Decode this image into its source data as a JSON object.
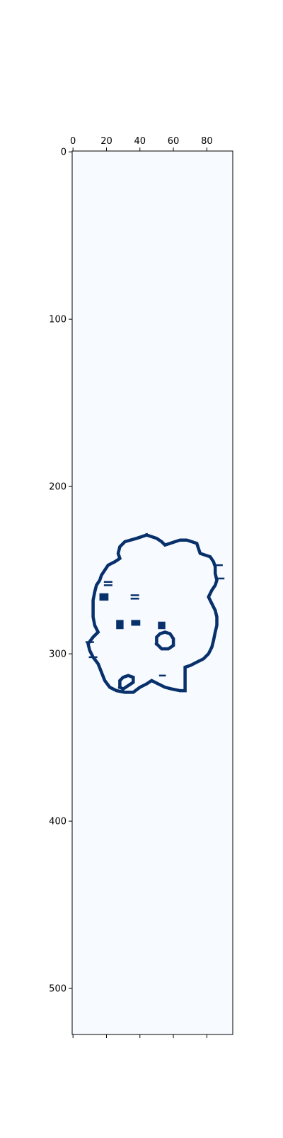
{
  "chart_data": {
    "type": "heatmap",
    "title": "",
    "xlabel": "",
    "ylabel": "",
    "xlim": [
      -0.5,
      95.5
    ],
    "ylim": [
      527.5,
      -0.5
    ],
    "x_ticks": [
      0,
      20,
      40,
      60,
      80
    ],
    "y_ticks": [
      0,
      100,
      200,
      300,
      400,
      500
    ],
    "x_tick_labels": [
      "0",
      "20",
      "40",
      "60",
      "80"
    ],
    "y_tick_labels": [
      "0",
      "100",
      "200",
      "300",
      "400",
      "500"
    ],
    "x_ticks_position": "top",
    "bottom_ticks_labeled": false,
    "grid": false,
    "colormap": "Blues",
    "background_color": "#f7fbff",
    "line_color": "#08306b",
    "outline": [
      [
        44,
        229
      ],
      [
        38,
        231
      ],
      [
        31,
        233
      ],
      [
        28,
        236
      ],
      [
        27,
        240
      ],
      [
        28,
        243
      ],
      [
        25,
        245
      ],
      [
        21,
        247
      ],
      [
        19,
        250
      ],
      [
        17,
        253
      ],
      [
        16,
        256
      ],
      [
        14,
        259
      ],
      [
        13,
        263
      ],
      [
        12,
        268
      ],
      [
        12,
        273
      ],
      [
        12,
        278
      ],
      [
        13,
        283
      ],
      [
        15,
        287
      ],
      [
        12,
        290
      ],
      [
        9,
        294
      ],
      [
        10,
        298
      ],
      [
        12,
        302
      ],
      [
        15,
        306
      ],
      [
        17,
        311
      ],
      [
        19,
        316
      ],
      [
        22,
        320
      ],
      [
        26,
        322
      ],
      [
        31,
        323
      ],
      [
        36,
        323
      ],
      [
        40,
        320
      ],
      [
        44,
        318
      ],
      [
        47,
        316
      ],
      [
        51,
        318
      ],
      [
        55,
        320
      ],
      [
        59,
        321
      ],
      [
        64,
        322
      ],
      [
        67,
        322
      ],
      [
        67,
        317
      ],
      [
        67,
        312
      ],
      [
        67,
        308
      ],
      [
        70,
        307
      ],
      [
        74,
        305
      ],
      [
        78,
        303
      ],
      [
        81,
        300
      ],
      [
        83,
        296
      ],
      [
        84,
        292
      ],
      [
        85,
        287
      ],
      [
        86,
        283
      ],
      [
        86,
        278
      ],
      [
        85,
        274
      ],
      [
        83,
        270
      ],
      [
        81,
        266
      ],
      [
        83,
        262
      ],
      [
        85,
        259
      ],
      [
        86,
        256
      ],
      [
        85,
        252
      ],
      [
        85,
        248
      ],
      [
        84,
        245
      ],
      [
        82,
        242
      ],
      [
        79,
        241
      ],
      [
        76,
        240
      ],
      [
        75,
        237
      ],
      [
        74,
        234
      ],
      [
        71,
        233
      ],
      [
        68,
        232
      ],
      [
        64,
        232
      ],
      [
        61,
        233
      ],
      [
        58,
        234
      ],
      [
        55,
        235
      ],
      [
        53,
        233
      ],
      [
        50,
        231
      ],
      [
        47,
        230
      ],
      [
        44,
        229
      ]
    ],
    "interior_marks": [
      {
        "shape": "loop",
        "points": [
          [
            50,
            294
          ],
          [
            50,
            290
          ],
          [
            52,
            288
          ],
          [
            55,
            287
          ],
          [
            58,
            288
          ],
          [
            60,
            291
          ],
          [
            60,
            295
          ],
          [
            57,
            297
          ],
          [
            53,
            297
          ],
          [
            50,
            294
          ]
        ]
      },
      {
        "shape": "loop",
        "points": [
          [
            28,
            320
          ],
          [
            28,
            316
          ],
          [
            30,
            314
          ],
          [
            33,
            313
          ],
          [
            36,
            314
          ],
          [
            36,
            317
          ],
          [
            33,
            319
          ],
          [
            30,
            321
          ],
          [
            28,
            320
          ]
        ]
      },
      {
        "shape": "block",
        "points": [
          [
            26,
            280
          ],
          [
            30,
            280
          ],
          [
            30,
            285
          ],
          [
            26,
            285
          ]
        ]
      },
      {
        "shape": "block",
        "points": [
          [
            35,
            280
          ],
          [
            40,
            280
          ],
          [
            40,
            283
          ],
          [
            35,
            283
          ]
        ]
      },
      {
        "shape": "block",
        "points": [
          [
            51,
            281
          ],
          [
            55,
            281
          ],
          [
            55,
            285
          ],
          [
            51,
            285
          ]
        ]
      },
      {
        "shape": "block",
        "points": [
          [
            16,
            264
          ],
          [
            21,
            264
          ],
          [
            21,
            268
          ],
          [
            16,
            268
          ]
        ]
      },
      {
        "shape": "stroke",
        "points": [
          [
            35,
            265
          ],
          [
            39,
            265
          ]
        ]
      },
      {
        "shape": "stroke",
        "points": [
          [
            35,
            267
          ],
          [
            39,
            267
          ]
        ]
      },
      {
        "shape": "stroke",
        "points": [
          [
            19,
            257
          ],
          [
            23,
            257
          ]
        ]
      },
      {
        "shape": "stroke",
        "points": [
          [
            19,
            259
          ],
          [
            23,
            259
          ]
        ]
      },
      {
        "shape": "stroke",
        "points": [
          [
            86,
            247
          ],
          [
            89,
            247
          ]
        ]
      },
      {
        "shape": "stroke",
        "points": [
          [
            87,
            255
          ],
          [
            90,
            255
          ]
        ]
      },
      {
        "shape": "stroke",
        "points": [
          [
            52,
            313
          ],
          [
            55,
            313
          ]
        ]
      },
      {
        "shape": "stroke",
        "points": [
          [
            8,
            293
          ],
          [
            12,
            293
          ]
        ]
      },
      {
        "shape": "stroke",
        "points": [
          [
            10,
            302
          ],
          [
            14,
            302
          ]
        ]
      }
    ]
  }
}
